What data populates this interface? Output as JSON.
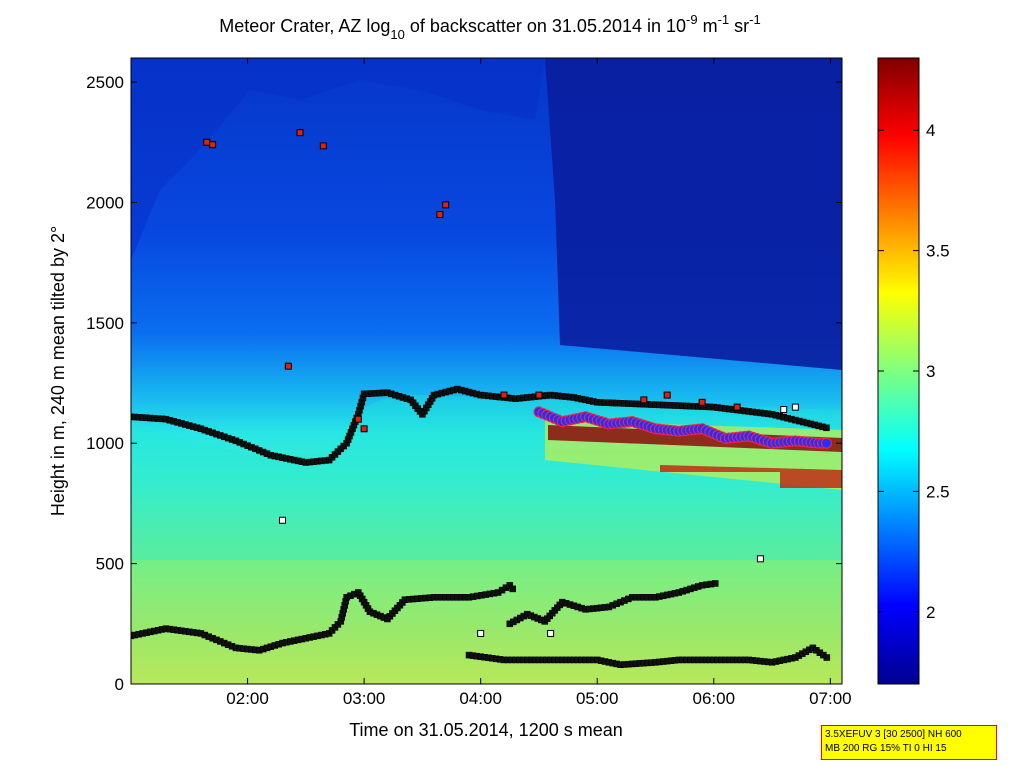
{
  "chart_data": {
    "type": "heatmap",
    "title_parts": {
      "prefix": "Meteor Crater, AZ log",
      "sub": "10",
      "middle": " of backscatter on 31.05.2014 in 10",
      "exp1": "-9",
      "unit1": " m",
      "exp2": "-1",
      "unit2": " sr",
      "exp3": "-1"
    },
    "xlabel": "Time on 31.05.2014, 1200 s mean",
    "ylabel": "Height in m, 240 m mean tilted by 2°",
    "xlim_hours": [
      1.0,
      7.1
    ],
    "ylim": [
      0,
      2600
    ],
    "xticks": [
      {
        "t": 2.0,
        "label": "02:00"
      },
      {
        "t": 3.0,
        "label": "03:00"
      },
      {
        "t": 4.0,
        "label": "04:00"
      },
      {
        "t": 5.0,
        "label": "05:00"
      },
      {
        "t": 6.0,
        "label": "06:00"
      },
      {
        "t": 7.0,
        "label": "07:00"
      }
    ],
    "yticks": [
      {
        "v": 0,
        "label": "0"
      },
      {
        "v": 500,
        "label": "500"
      },
      {
        "v": 1000,
        "label": "1000"
      },
      {
        "v": 1500,
        "label": "1500"
      },
      {
        "v": 2000,
        "label": "2000"
      },
      {
        "v": 2500,
        "label": "2500"
      }
    ],
    "colorbar": {
      "range": [
        1.7,
        4.3
      ],
      "ticks": [
        {
          "v": 2.0,
          "label": "2"
        },
        {
          "v": 2.5,
          "label": "2.5"
        },
        {
          "v": 3.0,
          "label": "3"
        },
        {
          "v": 3.5,
          "label": "3.5"
        },
        {
          "v": 4.0,
          "label": "4"
        }
      ],
      "colormap": "jet"
    },
    "layer_lines": [
      {
        "name": "upper-layer-boundary",
        "points": [
          [
            1.0,
            1110
          ],
          [
            1.3,
            1100
          ],
          [
            1.6,
            1060
          ],
          [
            1.9,
            1010
          ],
          [
            2.2,
            950
          ],
          [
            2.5,
            920
          ],
          [
            2.7,
            930
          ],
          [
            2.85,
            1000
          ],
          [
            2.95,
            1120
          ],
          [
            3.0,
            1205
          ],
          [
            3.2,
            1210
          ],
          [
            3.4,
            1180
          ],
          [
            3.5,
            1120
          ],
          [
            3.6,
            1200
          ],
          [
            3.8,
            1225
          ],
          [
            4.0,
            1200
          ],
          [
            4.3,
            1185
          ],
          [
            4.6,
            1200
          ],
          [
            4.8,
            1190
          ],
          [
            5.0,
            1170
          ],
          [
            5.5,
            1160
          ],
          [
            6.0,
            1150
          ],
          [
            6.5,
            1120
          ],
          [
            7.0,
            1060
          ]
        ]
      },
      {
        "name": "lower-layer-boundary",
        "points": [
          [
            1.0,
            200
          ],
          [
            1.3,
            230
          ],
          [
            1.6,
            210
          ],
          [
            1.9,
            150
          ],
          [
            2.1,
            140
          ],
          [
            2.3,
            170
          ],
          [
            2.5,
            190
          ],
          [
            2.7,
            210
          ],
          [
            2.8,
            260
          ],
          [
            2.85,
            360
          ],
          [
            2.95,
            380
          ],
          [
            3.05,
            300
          ],
          [
            3.2,
            270
          ],
          [
            3.35,
            350
          ],
          [
            3.6,
            360
          ],
          [
            3.9,
            360
          ],
          [
            4.15,
            380
          ],
          [
            4.25,
            410
          ],
          [
            4.3,
            380
          ]
        ]
      },
      {
        "name": "mid-layer-boundary",
        "points": [
          [
            4.25,
            250
          ],
          [
            4.4,
            290
          ],
          [
            4.55,
            260
          ],
          [
            4.7,
            340
          ],
          [
            4.9,
            310
          ],
          [
            5.1,
            320
          ],
          [
            5.3,
            360
          ],
          [
            5.5,
            360
          ],
          [
            5.7,
            380
          ],
          [
            5.9,
            410
          ],
          [
            6.05,
            420
          ]
        ]
      },
      {
        "name": "surface-layer-boundary",
        "points": [
          [
            3.9,
            120
          ],
          [
            4.2,
            100
          ],
          [
            4.6,
            100
          ],
          [
            5.0,
            100
          ],
          [
            5.2,
            80
          ],
          [
            5.5,
            90
          ],
          [
            5.7,
            100
          ],
          [
            6.0,
            100
          ],
          [
            6.3,
            100
          ],
          [
            6.5,
            90
          ],
          [
            6.7,
            110
          ],
          [
            6.85,
            150
          ],
          [
            7.0,
            100
          ]
        ]
      },
      {
        "name": "cloud-base",
        "points": [
          [
            4.5,
            1130
          ],
          [
            4.7,
            1090
          ],
          [
            4.9,
            1110
          ],
          [
            5.1,
            1080
          ],
          [
            5.3,
            1090
          ],
          [
            5.5,
            1060
          ],
          [
            5.7,
            1050
          ],
          [
            5.9,
            1060
          ],
          [
            6.1,
            1020
          ],
          [
            6.3,
            1030
          ],
          [
            6.5,
            1000
          ],
          [
            6.7,
            1010
          ],
          [
            6.9,
            1000
          ],
          [
            7.0,
            1000
          ]
        ]
      }
    ],
    "scatter_red": [
      [
        1.65,
        2250
      ],
      [
        1.7,
        2240
      ],
      [
        2.45,
        2290
      ],
      [
        2.65,
        2235
      ],
      [
        3.65,
        1950
      ],
      [
        3.7,
        1990
      ],
      [
        2.35,
        1320
      ],
      [
        2.95,
        1100
      ],
      [
        3.0,
        1060
      ],
      [
        4.2,
        1200
      ],
      [
        4.5,
        1200
      ],
      [
        5.4,
        1180
      ],
      [
        5.6,
        1200
      ],
      [
        5.9,
        1170
      ],
      [
        6.2,
        1150
      ]
    ],
    "scatter_white": [
      [
        2.3,
        680
      ],
      [
        4.0,
        210
      ],
      [
        4.6,
        210
      ],
      [
        6.4,
        520
      ],
      [
        6.7,
        1150
      ],
      [
        6.6,
        1140
      ]
    ]
  },
  "info_box": {
    "line1": "3.5XEFUV 3 [30 2500] NH 600",
    "line2": "MB 200 RG 15% TI 0 HI 15"
  },
  "colors": {
    "scatter_red": "#e02010",
    "scatter_white": "#ffffff",
    "cloud_base": "#2030ff",
    "cloud_outline": "#ff2040"
  }
}
